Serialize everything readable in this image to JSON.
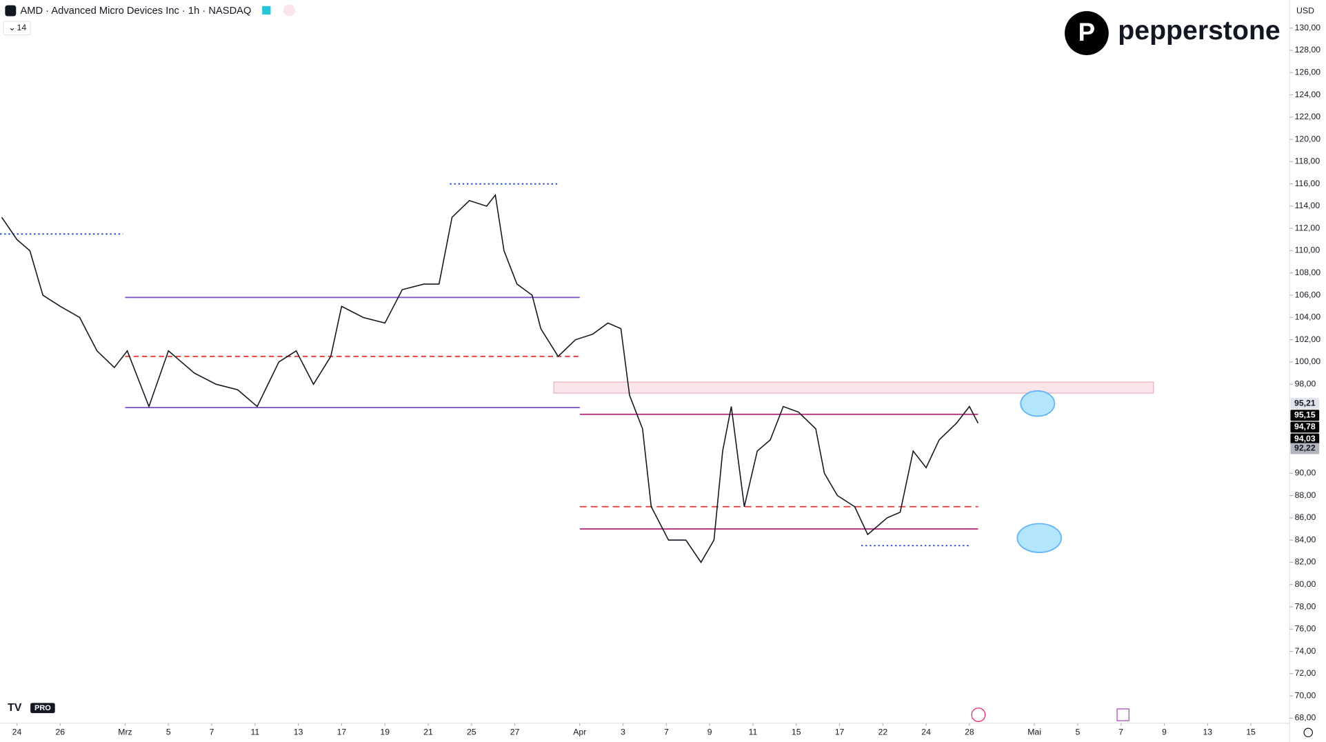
{
  "chart_data": {
    "type": "line",
    "title": "AMD · Advanced Micro Devices Inc · 1h · NASDAQ",
    "interval_input": "14",
    "currency": "USD",
    "brand": "pepperstone",
    "platform_badge": "PRO",
    "xlim": [
      -0.78,
      58.79
    ],
    "ylim": [
      68,
      130
    ],
    "xticks": [
      {
        "value": 0,
        "label": "24"
      },
      {
        "value": 2,
        "label": "26"
      },
      {
        "value": 5,
        "label": "Mrz"
      },
      {
        "value": 7,
        "label": "5"
      },
      {
        "value": 9,
        "label": "7"
      },
      {
        "value": 11,
        "label": "11"
      },
      {
        "value": 13,
        "label": "13"
      },
      {
        "value": 15,
        "label": "17"
      },
      {
        "value": 17,
        "label": "19"
      },
      {
        "value": 19,
        "label": "21"
      },
      {
        "value": 21,
        "label": "25"
      },
      {
        "value": 23,
        "label": "27"
      },
      {
        "value": 26,
        "label": "Apr"
      },
      {
        "value": 28,
        "label": "3"
      },
      {
        "value": 30,
        "label": "7"
      },
      {
        "value": 32,
        "label": "9"
      },
      {
        "value": 34,
        "label": "11"
      },
      {
        "value": 36,
        "label": "15"
      },
      {
        "value": 38,
        "label": "17"
      },
      {
        "value": 40,
        "label": "22"
      },
      {
        "value": 42,
        "label": "24"
      },
      {
        "value": 44,
        "label": "28"
      },
      {
        "value": 47,
        "label": "Mai"
      },
      {
        "value": 49,
        "label": "5"
      },
      {
        "value": 51,
        "label": "7"
      },
      {
        "value": 53,
        "label": "9"
      },
      {
        "value": 55,
        "label": "13"
      },
      {
        "value": 57,
        "label": "15"
      }
    ],
    "yticks": [
      {
        "value": 68,
        "label": "68,00"
      },
      {
        "value": 70,
        "label": "70,00"
      },
      {
        "value": 72,
        "label": "72,00"
      },
      {
        "value": 74,
        "label": "74,00"
      },
      {
        "value": 76,
        "label": "76,00"
      },
      {
        "value": 78,
        "label": "78,00"
      },
      {
        "value": 80,
        "label": "80,00"
      },
      {
        "value": 82,
        "label": "82,00"
      },
      {
        "value": 84,
        "label": "84,00"
      },
      {
        "value": 86,
        "label": "86,00"
      },
      {
        "value": 88,
        "label": "88,00"
      },
      {
        "value": 90,
        "label": "90,00"
      },
      {
        "value": 98,
        "label": "98,00"
      },
      {
        "value": 100,
        "label": "100,00"
      },
      {
        "value": 102,
        "label": "102,00"
      },
      {
        "value": 104,
        "label": "104,00"
      },
      {
        "value": 106,
        "label": "106,00"
      },
      {
        "value": 108,
        "label": "108,00"
      },
      {
        "value": 110,
        "label": "110,00"
      },
      {
        "value": 112,
        "label": "112,00"
      },
      {
        "value": 114,
        "label": "114,00"
      },
      {
        "value": 116,
        "label": "116,00"
      },
      {
        "value": 118,
        "label": "118,00"
      },
      {
        "value": 120,
        "label": "120,00"
      },
      {
        "value": 122,
        "label": "122,00"
      },
      {
        "value": 124,
        "label": "124,00"
      },
      {
        "value": 126,
        "label": "126,00"
      },
      {
        "value": 128,
        "label": "128,00"
      },
      {
        "value": 130,
        "label": "130,00"
      }
    ],
    "price_labels": [
      {
        "value": 95.21,
        "label": "95,21",
        "color": "#e0e3eb",
        "text_color": "#131722"
      },
      {
        "value": 95.15,
        "label": "95,15",
        "color": "#000000",
        "text_color": "#ffffff"
      },
      {
        "value": 94.78,
        "label": "94,78",
        "color": "#000000",
        "text_color": "#ffffff"
      },
      {
        "value": 94.03,
        "label": "94,03",
        "color": "#000000",
        "text_color": "#ffffff"
      },
      {
        "value": 92.22,
        "label": "92,22",
        "color": "#b2b5be",
        "text_color": "#131722"
      }
    ],
    "series": [
      {
        "color": "#131722",
        "x": [
          -0.7,
          0,
          0.6,
          1.2,
          2,
          2.9,
          3.7,
          4.5,
          5.1,
          6.1,
          7,
          8.2,
          9.2,
          10.2,
          11.1,
          12.1,
          12.9,
          13.7,
          14.5,
          15,
          16,
          17,
          17.8,
          18.8,
          19.5,
          20.1,
          20.9,
          21.7,
          22.1,
          22.5,
          23.1,
          23.8,
          24.2,
          25,
          25.8,
          26.6,
          27.3,
          27.9,
          28.3,
          28.9,
          29.3,
          30.1,
          30.9,
          31.6,
          32.2,
          32.6,
          33,
          33.6,
          34.2,
          34.8,
          35.4,
          36.1,
          36.9,
          37.3,
          37.9,
          38.7,
          39.3,
          40.2,
          40.8,
          41.4,
          42,
          42.6,
          43.4,
          44,
          44.4
        ],
        "values": [
          113,
          111,
          110,
          106,
          105,
          104,
          101,
          99.5,
          101,
          96,
          101,
          99,
          98,
          97.5,
          96,
          100,
          101,
          98,
          100.5,
          105,
          104,
          103.5,
          106.5,
          107,
          107,
          113,
          114.5,
          114,
          115,
          110,
          107,
          106,
          103,
          100.5,
          102,
          102.5,
          103.5,
          103,
          97,
          94,
          87,
          84,
          84,
          82,
          84,
          92,
          96,
          87,
          92,
          93,
          96,
          95.5,
          94,
          90,
          88,
          87,
          84.5,
          86,
          86.5,
          92,
          90.5,
          93,
          94.5,
          96,
          94.5
        ]
      }
    ],
    "levels": [
      {
        "value": 105.8,
        "x": [
          5.0,
          26.0
        ],
        "color": "#7e57c2",
        "dash": "none"
      },
      {
        "value": 95.9,
        "x": [
          5.0,
          26.0
        ],
        "color": "#7e57c2",
        "dash": "none"
      },
      {
        "value": 95.3,
        "x": [
          26.0,
          44.4
        ],
        "color": "#b5307a",
        "dash": "none"
      },
      {
        "value": 85.0,
        "x": [
          26.0,
          44.4
        ],
        "color": "#b5307a",
        "dash": "none"
      },
      {
        "value": 87.0,
        "x": [
          26.0,
          44.4
        ],
        "color": "#e53935",
        "dash": "8 5"
      },
      {
        "value": 100.5,
        "x": [
          5.0,
          26.0
        ],
        "color": "#e53935",
        "dash": "6 4"
      },
      {
        "value": 116,
        "x": [
          20.0,
          25.0
        ],
        "color": "#1e40d0",
        "dash": "2 3"
      },
      {
        "value": 111.5,
        "x": [
          -0.78,
          4.9
        ],
        "color": "#1e40d0",
        "dash": "2 3"
      },
      {
        "value": 83.5,
        "x": [
          39.0,
          44.0
        ],
        "color": "#1e40d0",
        "dash": "2 3"
      }
    ],
    "zone": {
      "ylim": [
        97.2,
        98.2
      ],
      "x": [
        24.8,
        52.5
      ],
      "color": "#f6d6dc"
    }
  }
}
